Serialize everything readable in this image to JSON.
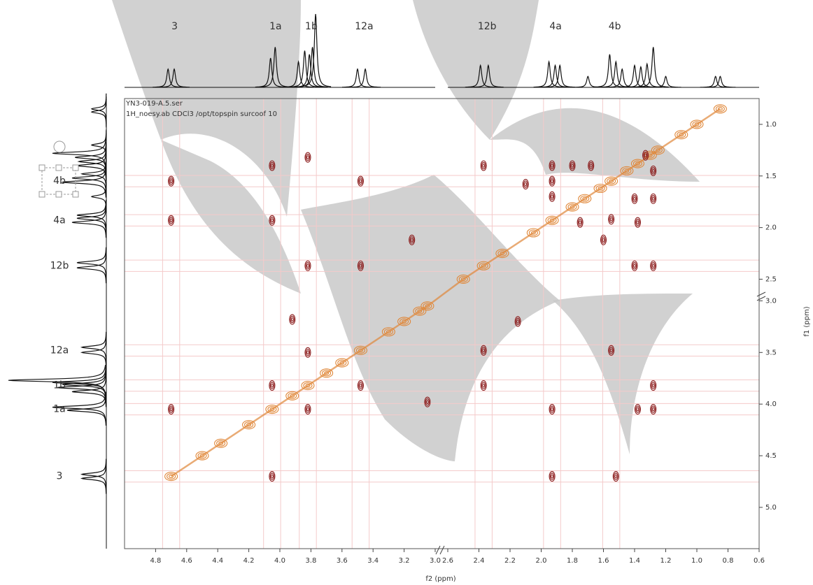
{
  "chart_data": {
    "type": "contour",
    "file_name": "YN3-019-A.5.ser",
    "parameters": "1H_noesy.ab CDCl3 /opt/topspin surcoof 10",
    "x_label": "f2 (ppm)",
    "y_label": "f1 (ppm)",
    "grid_color": "#f4caca",
    "x_segments": [
      {
        "xlim": [
          5.0,
          3.0
        ],
        "xticks": [
          4.8,
          4.6,
          4.4,
          4.2,
          {
            "value": 4,
            "label": "4.0"
          },
          3.8,
          3.6,
          3.4,
          3.2,
          {
            "value": 3,
            "label": "3.0"
          }
        ]
      },
      {
        "xlim": [
          2.6,
          0.6
        ],
        "xticks": [
          2.6,
          2.4,
          2.2,
          {
            "value": 2,
            "label": "2.0"
          },
          1.8,
          1.6,
          1.4,
          1.2,
          {
            "value": 1,
            "label": "1.0"
          },
          0.8,
          0.6
        ]
      }
    ],
    "y_segments": [
      {
        "ylim": [
          0.75,
          2.7
        ],
        "yticks": [
          {
            "value": 1,
            "label": "1.0"
          },
          1.5,
          {
            "value": 2,
            "label": "2.0"
          },
          2.5
        ]
      },
      {
        "ylim": [
          2.97,
          5.4
        ],
        "yticks": [
          {
            "value": 3,
            "label": "3.0"
          },
          3.5,
          {
            "value": 4,
            "label": "4.0"
          },
          4.5,
          {
            "value": 5,
            "label": "5.0"
          }
        ]
      }
    ],
    "assignments": [
      {
        "label": "3",
        "shift": 4.7
      },
      {
        "label": "1a",
        "shift": 4.05
      },
      {
        "label": "1b",
        "shift": 3.82
      },
      {
        "label": "12a",
        "shift": 3.48
      },
      {
        "label": "12b",
        "shift": 2.37
      },
      {
        "label": "4a",
        "shift": 1.93
      },
      {
        "label": "4b",
        "shift": 1.55
      }
    ],
    "projection": {
      "color": "#111111",
      "x": [
        4.72,
        4.68,
        4.06,
        4.03,
        3.88,
        3.84,
        3.81,
        3.79,
        3.77,
        3.5,
        3.45,
        2.39,
        2.34,
        1.95,
        1.91,
        1.88,
        1.7,
        1.56,
        1.52,
        1.48,
        1.4,
        1.36,
        1.32,
        1.28,
        1.2,
        0.88,
        0.85
      ],
      "values": [
        25,
        25,
        40,
        55,
        35,
        50,
        45,
        55,
        100,
        25,
        25,
        30,
        30,
        35,
        30,
        30,
        15,
        45,
        35,
        25,
        30,
        28,
        32,
        55,
        15,
        15,
        15
      ]
    },
    "cross_peaks": {
      "color": "#8b1c1c",
      "x": [
        4.05,
        3.82,
        3.48,
        4.7,
        4.7,
        4.05,
        3.82,
        3.48,
        3.15,
        2.37,
        1.93,
        1.93,
        1.93,
        1.8,
        1.68,
        1.55,
        1.75,
        1.6,
        1.33,
        1.4,
        1.28,
        1.38,
        1.4,
        1.28,
        1.28,
        2.1,
        3.92,
        2.37,
        1.55,
        2.37,
        3.48,
        4.05,
        1.28,
        3.05,
        4.7,
        3.82,
        1.93,
        1.38,
        1.28,
        4.05,
        1.93,
        1.52,
        2.15,
        3.82
      ],
      "y": [
        1.4,
        1.32,
        1.55,
        1.55,
        1.93,
        1.93,
        2.37,
        2.37,
        2.12,
        1.4,
        1.55,
        1.7,
        1.4,
        1.4,
        1.4,
        1.92,
        1.95,
        2.12,
        1.3,
        1.72,
        1.72,
        1.95,
        2.37,
        2.37,
        1.45,
        1.58,
        3.18,
        3.48,
        3.48,
        3.82,
        3.82,
        3.82,
        3.82,
        3.98,
        4.05,
        4.05,
        4.05,
        4.05,
        4.05,
        4.7,
        4.7,
        4.7,
        3.2,
        3.5
      ]
    },
    "diagonal_peaks": {
      "color": "#e0883a",
      "x": [
        0.85,
        1.0,
        1.1,
        1.25,
        1.3,
        1.38,
        1.45,
        1.55,
        1.62,
        1.72,
        1.8,
        1.93,
        2.05,
        2.25,
        2.37,
        2.5,
        3.05,
        3.1,
        3.2,
        3.3,
        3.48,
        3.6,
        3.7,
        3.82,
        3.92,
        4.05,
        4.2,
        4.38,
        4.5,
        4.7
      ],
      "y": [
        0.85,
        1.0,
        1.1,
        1.25,
        1.3,
        1.38,
        1.45,
        1.55,
        1.62,
        1.72,
        1.8,
        1.93,
        2.05,
        2.25,
        2.37,
        2.5,
        3.05,
        3.1,
        3.2,
        3.3,
        3.48,
        3.6,
        3.7,
        3.82,
        3.92,
        4.05,
        4.2,
        4.38,
        4.5,
        4.7
      ]
    }
  }
}
